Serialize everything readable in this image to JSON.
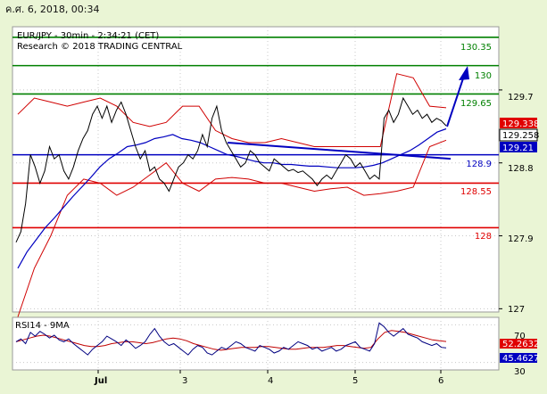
{
  "date_header": "ค.ศ. 6, 2018, 00:34",
  "colors": {
    "background": "#eaf5d5",
    "plot_bg": "#ffffff",
    "grid": "#c8c8c8",
    "green_level": "#008000",
    "red_level": "#e00000",
    "blue_level": "#0000c0",
    "price": "#000000",
    "bollinger": "#d00000",
    "ma": "#0000c0",
    "arrow": "#0000c0",
    "rsi": "#000080",
    "rsi_ma": "#c00000",
    "last_price_box": "#000000",
    "red_box": "#e00000",
    "blue_box": "#0000c0"
  },
  "chart_data": [
    {
      "type": "line",
      "title": "EUR/JPY - 30min - 2:34:21 (CET)",
      "subtitle": "Research © 2018 TRADING CENTRAL",
      "xlabel": "",
      "ylabel": "",
      "x_ticks": [
        "Jul",
        "3",
        "4",
        "5",
        "6"
      ],
      "y_ticks": [
        127.0,
        127.9,
        128.8,
        129.7
      ],
      "ylim": [
        126.96,
        130.48
      ],
      "levels": [
        {
          "value": 130.35,
          "label": "130.35",
          "color": "green"
        },
        {
          "value": 130.0,
          "label": "130",
          "color": "green"
        },
        {
          "value": 129.65,
          "label": "129.65",
          "color": "green"
        },
        {
          "value": 128.9,
          "label": "128.9",
          "color": "blue"
        },
        {
          "value": 128.55,
          "label": "128.55",
          "color": "red"
        },
        {
          "value": 128.0,
          "label": "128",
          "color": "red"
        }
      ],
      "price_boxes": [
        {
          "value": 129.338,
          "label": "129.338",
          "style": "red"
        },
        {
          "value": 129.258,
          "label": "129.258",
          "style": "black"
        },
        {
          "value": 129.21,
          "label": "129.21",
          "style": "blue"
        }
      ],
      "series": [
        {
          "values": [
            127.82,
            127.95,
            128.3,
            128.9,
            128.75,
            128.55,
            128.7,
            129.0,
            128.85,
            128.9,
            128.7,
            128.6,
            128.75,
            128.95,
            129.1,
            129.2,
            129.4,
            129.5,
            129.35,
            129.5,
            129.3,
            129.45,
            129.55,
            129.4,
            129.2,
            129.0,
            128.85,
            128.95,
            128.7,
            128.75,
            128.6,
            128.55,
            128.45,
            128.6,
            128.75,
            128.8,
            128.9,
            128.85,
            128.95,
            129.15,
            129.0,
            129.35,
            129.5,
            129.2,
            129.05,
            128.95,
            128.85,
            128.75,
            128.8,
            128.95,
            128.9,
            128.8,
            128.75,
            128.7,
            128.85,
            128.8,
            128.75,
            128.7,
            128.72,
            128.68,
            128.7,
            128.65,
            128.6,
            128.52,
            128.6,
            128.65,
            128.6,
            128.7,
            128.8,
            128.9,
            128.85,
            128.75,
            128.8,
            128.7,
            128.6,
            128.65,
            128.6,
            129.35,
            129.45,
            129.3,
            129.4,
            129.6,
            129.5,
            129.4,
            129.45,
            129.35,
            129.4,
            129.3,
            129.35,
            129.32,
            129.258
          ]
        },
        {
          "values": [
            127.5,
            127.7,
            127.85,
            128.0,
            128.12,
            128.25,
            128.38,
            128.5,
            128.62,
            128.75,
            128.85,
            128.92,
            129.0,
            129.02,
            129.05,
            129.1,
            129.12,
            129.15,
            129.1,
            129.08,
            129.05,
            129.0,
            128.95,
            128.9,
            128.88,
            128.85,
            128.82,
            128.8,
            128.8,
            128.78,
            128.78,
            128.77,
            128.76,
            128.76,
            128.75,
            128.74,
            128.74,
            128.74,
            128.75,
            128.77,
            128.8,
            128.85,
            128.9,
            128.95,
            129.02,
            129.1,
            129.18,
            129.22
          ]
        },
        {
          "values": [
            129.4,
            129.6,
            129.55,
            129.5,
            129.55,
            129.6,
            129.5,
            129.3,
            129.25,
            129.3,
            129.5,
            129.5,
            129.2,
            129.1,
            129.05,
            129.05,
            129.1,
            129.05,
            129.0,
            129.0,
            129.0,
            129.0,
            129.0,
            129.9,
            129.85,
            129.5,
            129.48
          ]
        },
        {
          "values": [
            126.9,
            127.5,
            127.9,
            128.4,
            128.6,
            128.55,
            128.4,
            128.5,
            128.65,
            128.8,
            128.55,
            128.45,
            128.6,
            128.62,
            128.6,
            128.55,
            128.55,
            128.5,
            128.45,
            128.48,
            128.5,
            128.4,
            128.42,
            128.45,
            128.5,
            129.0,
            129.08
          ]
        }
      ]
    },
    {
      "type": "line",
      "title": "RSI14 - 9MA",
      "y_ticks": [
        30,
        70
      ],
      "ylim": [
        22,
        78
      ],
      "value_boxes": [
        {
          "value": 52.2632,
          "label": "52.2632",
          "style": "red"
        },
        {
          "value": 45.4627,
          "label": "45.4627",
          "style": "blue"
        }
      ],
      "series": [
        {
          "values": [
            52,
            55,
            50,
            62,
            58,
            63,
            60,
            56,
            59,
            54,
            52,
            55,
            50,
            46,
            42,
            38,
            44,
            48,
            52,
            58,
            55,
            52,
            48,
            54,
            50,
            45,
            48,
            52,
            60,
            66,
            58,
            52,
            48,
            50,
            46,
            42,
            38,
            44,
            48,
            46,
            40,
            38,
            42,
            46,
            44,
            48,
            52,
            50,
            46,
            44,
            42,
            48,
            46,
            44,
            40,
            42,
            46,
            44,
            48,
            52,
            50,
            48,
            44,
            46,
            42,
            44,
            46,
            42,
            44,
            48,
            50,
            52,
            46,
            44,
            42,
            50,
            72,
            68,
            62,
            58,
            62,
            66,
            60,
            58,
            56,
            52,
            50,
            48,
            50,
            46,
            45.46
          ]
        },
        {
          "values": [
            52,
            54,
            56,
            58,
            59,
            58,
            56,
            54,
            52,
            50,
            48,
            47,
            47,
            48,
            50,
            51,
            52,
            52,
            51,
            50,
            51,
            53,
            55,
            56,
            55,
            53,
            50,
            48,
            46,
            44,
            43,
            44,
            45,
            46,
            46,
            46,
            47,
            47,
            46,
            45,
            44,
            44,
            45,
            46,
            46,
            46,
            47,
            48,
            48,
            47,
            46,
            45,
            46,
            55,
            62,
            64,
            63,
            62,
            60,
            58,
            56,
            54,
            53,
            52.26
          ]
        }
      ]
    }
  ]
}
